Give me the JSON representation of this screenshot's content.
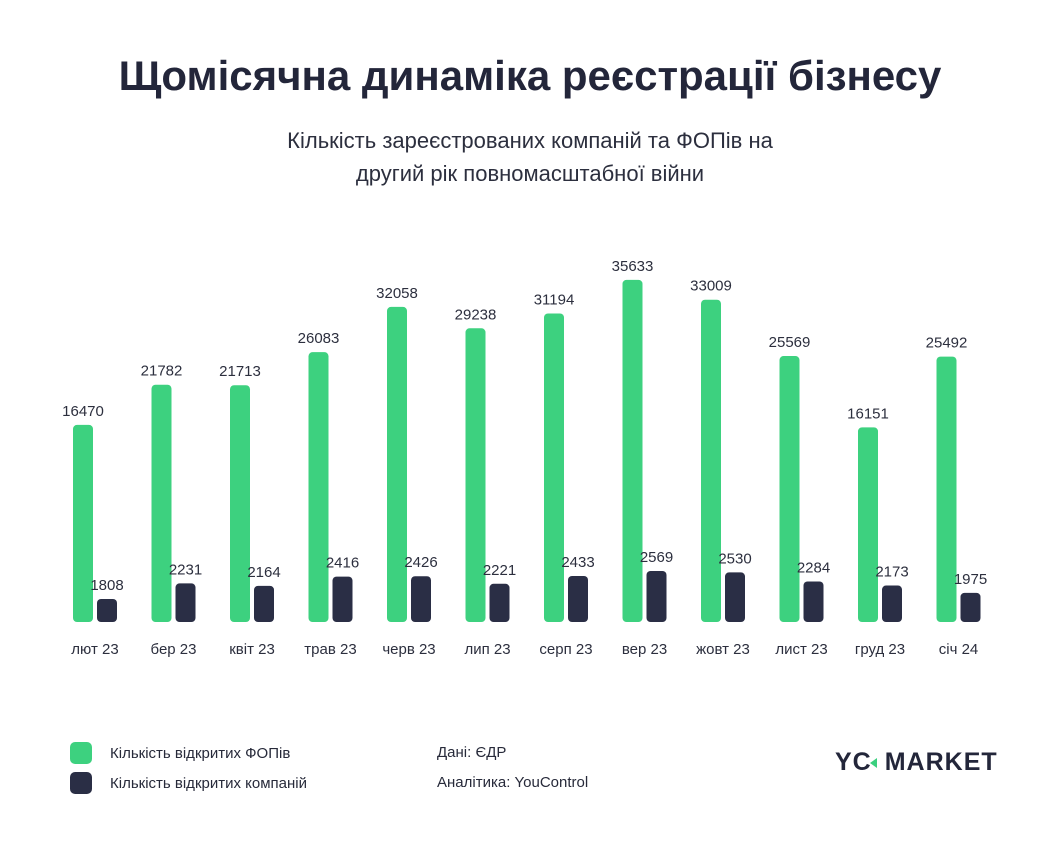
{
  "title": "Щомісячна динаміка реєстрації бізнесу",
  "subtitle_lines": [
    "Кількість зареєстрованих компаній та ФОПів на",
    "другий рік повномасштабної війни"
  ],
  "legend": [
    {
      "label": "Кількість відкритих ФОПів",
      "color": "#3dd17f"
    },
    {
      "label": "Кількість відкритих компаній",
      "color": "#2a2e45"
    }
  ],
  "source": {
    "data": "Дані: ЄДР",
    "analytics": "Аналітика: YouControl"
  },
  "logo": {
    "text_left": "YC",
    "text_right": "MARKET"
  },
  "chart_data": {
    "type": "bar",
    "categories": [
      "лют 23",
      "бер 23",
      "квіт 23",
      "трав 23",
      "черв 23",
      "лип 23",
      "серп 23",
      "вер 23",
      "жовт 23",
      "лист 23",
      "груд 23",
      "січ 24"
    ],
    "series": [
      {
        "name": "Кількість відкритих ФОПів",
        "color": "#3dd17f",
        "values": [
          16470,
          21782,
          21713,
          26083,
          32058,
          29238,
          31194,
          35633,
          33009,
          25569,
          16151,
          25492
        ]
      },
      {
        "name": "Кількість відкритих компаній",
        "color": "#2a2e45",
        "values": [
          1808,
          2231,
          2164,
          2416,
          2426,
          2221,
          2433,
          2569,
          2530,
          2284,
          2173,
          1975
        ]
      }
    ],
    "grid": false,
    "legend_position": "bottom-left",
    "data_labels": true
  }
}
